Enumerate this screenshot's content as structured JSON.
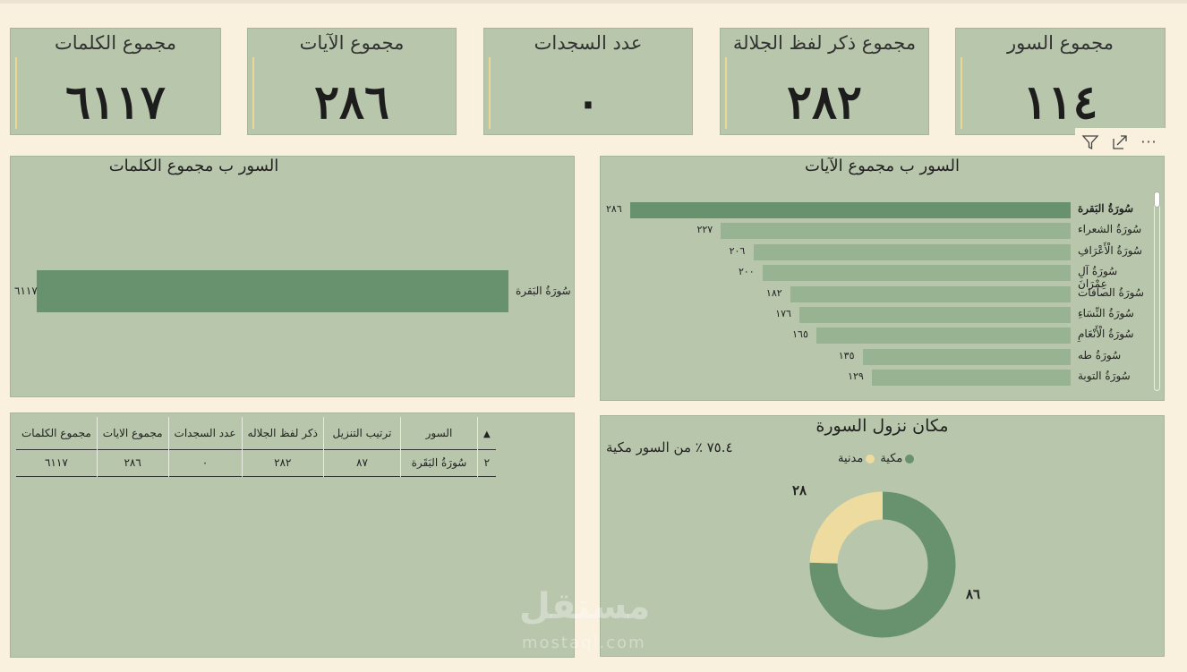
{
  "kpis": [
    {
      "title": "مجموع الكلمات",
      "value": "٦١١٧"
    },
    {
      "title": "مجموع الآيات",
      "value": "٢٨٦"
    },
    {
      "title": "عدد السجدات",
      "value": "٠"
    },
    {
      "title": "مجموع ذكر لفظ الجلالة",
      "value": "٢٨٢"
    },
    {
      "title": "مجموع السور",
      "value": "١١٤"
    }
  ],
  "toolbar": {
    "icons": [
      "filter-icon",
      "focus-mode-icon",
      "more-options-icon"
    ],
    "more": "···"
  },
  "words_chart": {
    "title": "السور ب مجموع الكلمات",
    "chart_data": {
      "type": "bar",
      "orientation": "horizontal",
      "categories": [
        "سُورَةُ البَقرة"
      ],
      "values": [
        6117
      ],
      "value_labels": [
        "٦١١٧"
      ]
    }
  },
  "ayat_chart": {
    "title": "السور ب مجموع الآيات",
    "chart_data": {
      "type": "bar",
      "orientation": "horizontal",
      "categories": [
        "سُورَةُ البَقرة",
        "سُورَةُ الشعراء",
        "سُورَةُ الْأَعْرَافِ",
        "سُورَةُ آلِ عِمْرَانَ",
        "سُورَةُ الصافات",
        "سُورَةُ النِّسَاءِ",
        "سُورَةُ الْأَنْعَامِ",
        "سُورَةُ طه",
        "سُورَةُ التوبة"
      ],
      "values": [
        286,
        227,
        206,
        200,
        182,
        176,
        165,
        135,
        129
      ],
      "value_labels": [
        "٢٨٦",
        "٢٢٧",
        "٢٠٦",
        "٢٠٠",
        "١٨٢",
        "١٧٦",
        "١٦٥",
        "١٣٥",
        "١٢٩"
      ]
    }
  },
  "table": {
    "headers": [
      "مجموع الكلمات",
      "مجموع الايات",
      "عدد السجدات",
      "ذكر لفظ الجلاله",
      "ترتيب التنزيل",
      "السور",
      ""
    ],
    "rows": [
      [
        "٦١١٧",
        "٢٨٦",
        "٠",
        "٢٨٢",
        "٨٧",
        "سُورَةُ البَقَرة",
        "٢"
      ]
    ]
  },
  "donut": {
    "title": "مكان نزول السورة",
    "subtitle": "٧٥.٤ ٪ من السور مكية",
    "legend": [
      {
        "label": "مكية",
        "color": "#67926d"
      },
      {
        "label": "مدنية",
        "color": "#eedb9f"
      }
    ],
    "chart_data": {
      "type": "pie",
      "variant": "donut",
      "categories": [
        "مكية",
        "مدنية"
      ],
      "values": [
        86,
        28
      ],
      "value_labels": [
        "٨٦",
        "٢٨"
      ],
      "colors": [
        "#67926d",
        "#eedb9f"
      ]
    }
  },
  "watermark": {
    "text": "مستقل",
    "sub": "mostaql.com"
  }
}
